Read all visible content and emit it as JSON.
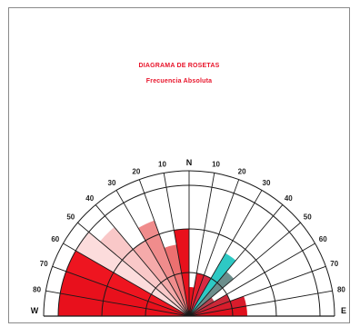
{
  "chart_data": {
    "type": "rose",
    "title": "DIAGRAMA DE ROSETAS",
    "subtitle": "Frecuencia Absoluta",
    "direction_labels": [
      "W",
      "N",
      "E"
    ],
    "tick_labels": [
      "80",
      "70",
      "60",
      "50",
      "40",
      "30",
      "20",
      "10",
      "10",
      "20",
      "30",
      "40",
      "50",
      "60",
      "70",
      "80"
    ],
    "sectors": [
      {
        "from_deg": -90,
        "to_deg": -80,
        "value": 9,
        "color": "#e8101c"
      },
      {
        "from_deg": -80,
        "to_deg": -70,
        "value": 9,
        "color": "#e8101c"
      },
      {
        "from_deg": -70,
        "to_deg": -60,
        "value": 9,
        "color": "#ee1520"
      },
      {
        "from_deg": -60,
        "to_deg": -50,
        "value": 9,
        "color": "#fcdcdc"
      },
      {
        "from_deg": -50,
        "to_deg": -40,
        "value": 8,
        "color": "#f9c8c8"
      },
      {
        "from_deg": -40,
        "to_deg": -30,
        "value": 6,
        "color": "#f5aaaa"
      },
      {
        "from_deg": -30,
        "to_deg": -20,
        "value": 7,
        "color": "#f08c8c"
      },
      {
        "from_deg": -20,
        "to_deg": -10,
        "value": 5,
        "color": "#ec7070"
      },
      {
        "from_deg": -10,
        "to_deg": 0,
        "value": 6,
        "color": "#e8101c"
      },
      {
        "from_deg": 0,
        "to_deg": 10,
        "value": 2,
        "color": "#e8101c"
      },
      {
        "from_deg": 10,
        "to_deg": 20,
        "value": 3,
        "color": "#e81c2a"
      },
      {
        "from_deg": 20,
        "to_deg": 30,
        "value": 3,
        "color": "#d82a44"
      },
      {
        "from_deg": 30,
        "to_deg": 40,
        "value": 5,
        "color": "#2ec9c4"
      },
      {
        "from_deg": 40,
        "to_deg": 50,
        "value": 4,
        "color": "#6c8e8c"
      },
      {
        "from_deg": 50,
        "to_deg": 60,
        "value": 2,
        "color": "#b44450"
      },
      {
        "from_deg": 60,
        "to_deg": 70,
        "value": 3,
        "color": "#cc2838"
      },
      {
        "from_deg": 70,
        "to_deg": 80,
        "value": 4,
        "color": "#d81c2c"
      },
      {
        "from_deg": 80,
        "to_deg": 90,
        "value": 4,
        "color": "#e0101c"
      }
    ],
    "ring_values": [
      3,
      6,
      9
    ],
    "rmax": 10,
    "sector_width_deg": 10
  }
}
